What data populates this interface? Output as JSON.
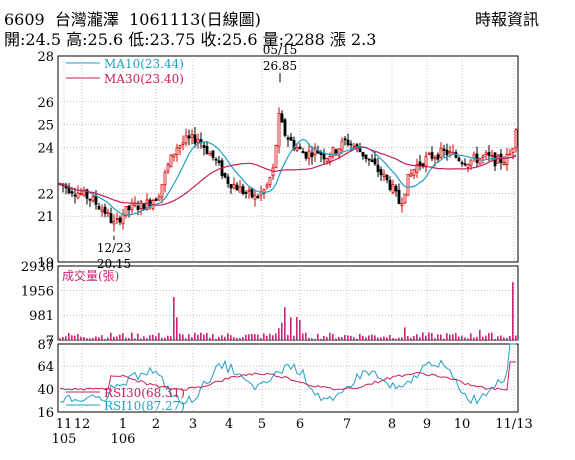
{
  "header": {
    "code": "6609",
    "name": "台灣瀧澤",
    "date": "1061113",
    "period": "(日線圖)",
    "source": "時報資訊",
    "open_label": "開:24.5",
    "high_label": "高:25.6",
    "low_label": "低:23.75",
    "close_label": "收:25.6",
    "volume_label": "量:2288",
    "change_label": "漲 2.3"
  },
  "colors": {
    "up": "#d40000",
    "down": "#000000",
    "volume": "#cc2277",
    "ma10": "#20a0c8",
    "ma30": "#c8205a",
    "rsi30": "#c8205a",
    "rsi10": "#20a0c8"
  },
  "chart_data": [
    {
      "type": "candlestick",
      "panel": "price",
      "ylim": [
        19,
        28
      ],
      "y_ticks": [
        19,
        21,
        22,
        24,
        25,
        26,
        28
      ],
      "series": [
        {
          "name": "MA10",
          "label": "MA10(23.44)",
          "value": 23.44
        },
        {
          "name": "MA30",
          "label": "MA30(23.40)",
          "value": 23.4
        }
      ],
      "annotations": [
        {
          "text_top": "05/15",
          "text_bottom": "26.85",
          "value": 26.85,
          "kind": "high"
        },
        {
          "text_top": "12/23",
          "text_bottom": "20.15",
          "value": 20.15,
          "kind": "low"
        }
      ],
      "grid": true
    },
    {
      "type": "bar",
      "panel": "volume",
      "title": "成交量(張)",
      "ylim": [
        0,
        2930
      ],
      "y_ticks": [
        7,
        981,
        1956,
        2930
      ],
      "grid": true
    },
    {
      "type": "line",
      "panel": "rsi",
      "ylim": [
        16,
        87
      ],
      "y_ticks": [
        16,
        40,
        64,
        87
      ],
      "series": [
        {
          "name": "RSI30",
          "label": "RSI30(68.31)",
          "value": 68.31
        },
        {
          "name": "RSI10",
          "label": "RSI10(87.27)",
          "value": 87.27
        }
      ],
      "grid": true
    }
  ],
  "x_axis": {
    "ticks": [
      {
        "label": "11",
        "sub": "105"
      },
      {
        "label": "12",
        "sub": ""
      },
      {
        "label": "1",
        "sub": "106"
      },
      {
        "label": "2",
        "sub": ""
      },
      {
        "label": "3",
        "sub": ""
      },
      {
        "label": "4",
        "sub": ""
      },
      {
        "label": "5",
        "sub": ""
      },
      {
        "label": "6",
        "sub": ""
      },
      {
        "label": "7",
        "sub": ""
      },
      {
        "label": "8",
        "sub": ""
      },
      {
        "label": "9",
        "sub": ""
      },
      {
        "label": "10",
        "sub": ""
      },
      {
        "label": "11/13",
        "sub": ""
      }
    ]
  }
}
